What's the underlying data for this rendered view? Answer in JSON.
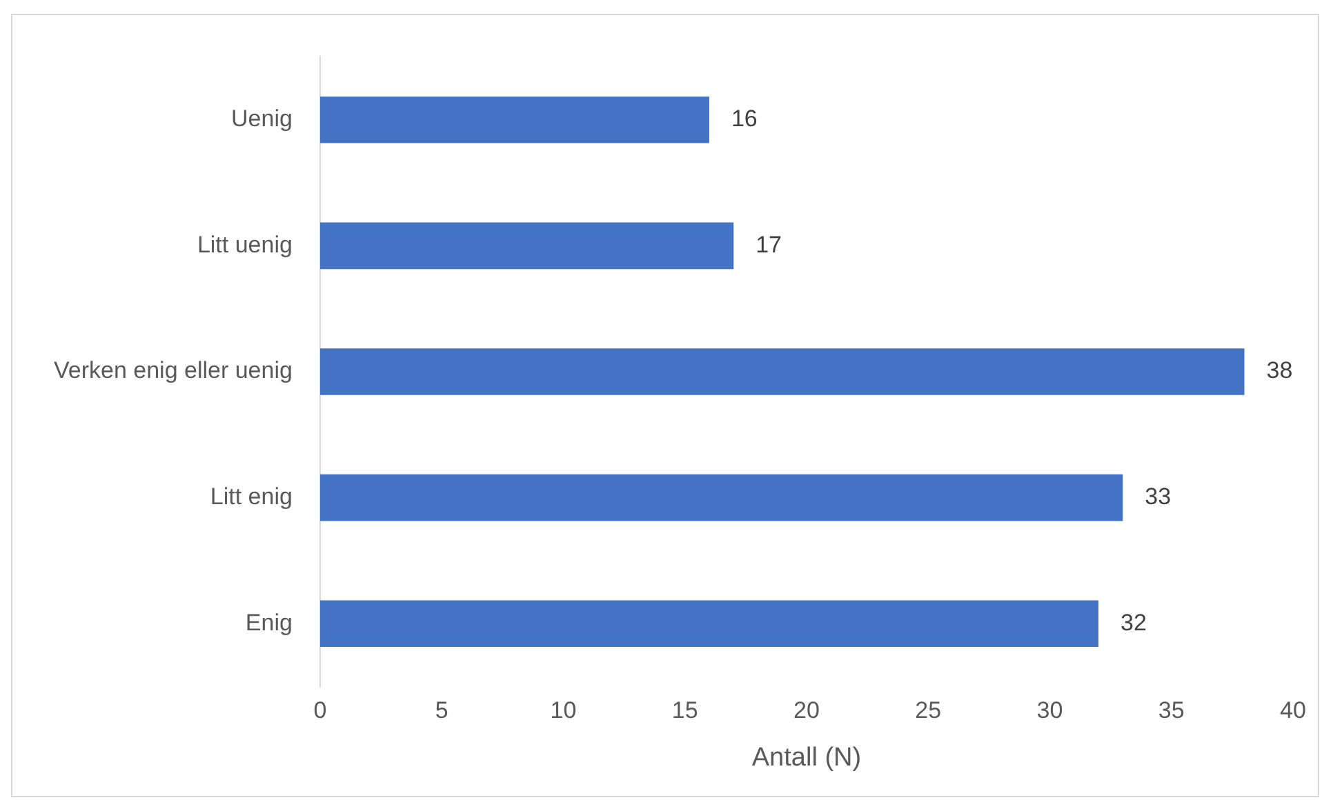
{
  "chart_data": {
    "type": "bar",
    "orientation": "horizontal",
    "categories": [
      "Uenig",
      "Litt uenig",
      "Verken enig eller uenig",
      "Litt enig",
      "Enig"
    ],
    "values": [
      16,
      17,
      38,
      33,
      32
    ],
    "color": "#4472c4",
    "xlim": [
      0,
      40
    ],
    "xticks": [
      0,
      5,
      10,
      15,
      20,
      25,
      30,
      35,
      40
    ],
    "xlabel": "Antall (N)",
    "grid": false,
    "legend": false,
    "data_labels": true
  }
}
